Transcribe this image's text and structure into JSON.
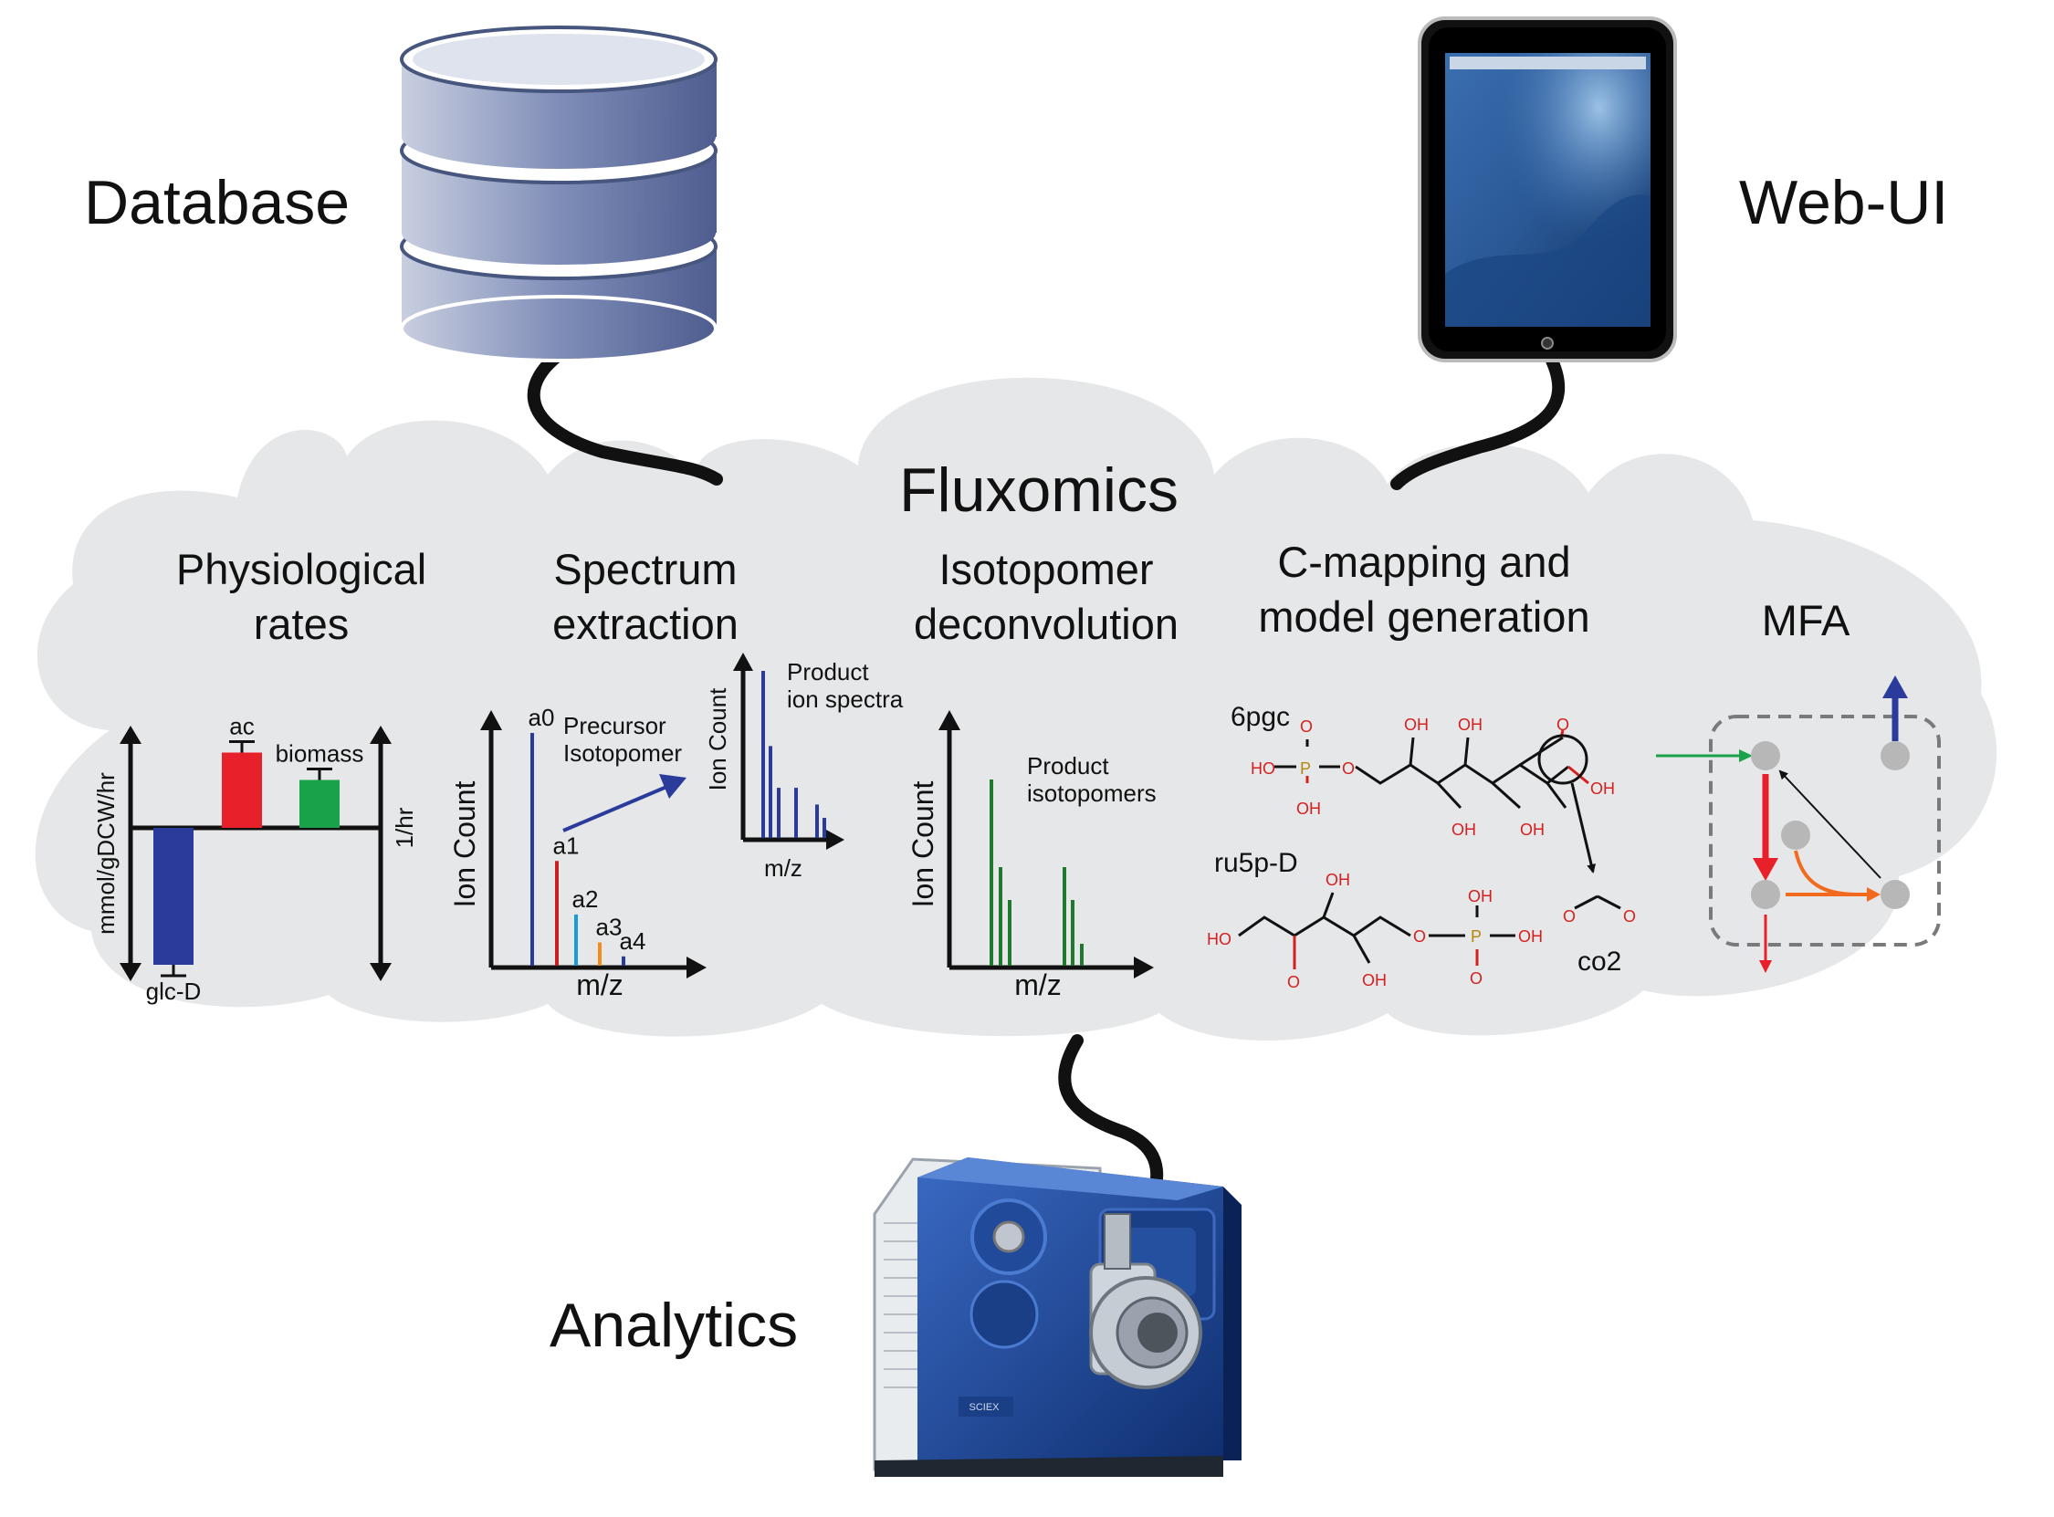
{
  "labels": {
    "database": "Database",
    "webui": "Web-UI",
    "fluxomics": "Fluxomics",
    "analytics": "Analytics"
  },
  "sections": {
    "physio_1": "Physiological",
    "physio_2": "rates",
    "spectrum_1": "Spectrum",
    "spectrum_2": "extraction",
    "isotop_1": "Isotopomer",
    "isotop_2": "deconvolution",
    "cmap_1": "C-mapping and",
    "cmap_2": "model generation",
    "mfa": "MFA"
  },
  "physio": {
    "y_left": "mmol/gDCW/hr",
    "y_right": "1/hr",
    "bars": [
      {
        "label": "glc-D",
        "value": -1.0,
        "color": "#2a3b9c"
      },
      {
        "label": "ac",
        "value": 0.55,
        "color": "#e8202a"
      },
      {
        "label": "biomass",
        "value": 0.35,
        "color": "#1aa24a"
      }
    ]
  },
  "spectrum": {
    "ylabel": "Ion Count",
    "xlabel": "m/z",
    "precursor_1": "Precursor",
    "precursor_2": "Isotopomer",
    "peaks": [
      {
        "label": "a0",
        "value": 1.0,
        "color": "#2a3b9c"
      },
      {
        "label": "a1",
        "value": 0.45,
        "color": "#c82020"
      },
      {
        "label": "a2",
        "value": 0.22,
        "color": "#1a9ad8"
      },
      {
        "label": "a3",
        "value": 0.1,
        "color": "#f28c1e"
      },
      {
        "label": "a4",
        "value": 0.04,
        "color": "#2a3b9c"
      }
    ],
    "product_1": "Product",
    "product_2": "ion spectra",
    "product_ylabel": "Ion Count",
    "product_xlabel": "m/z",
    "product_peaks": [
      1.0,
      0.55,
      0.3,
      0.3,
      0.2,
      0.12
    ]
  },
  "isotopomer": {
    "ylabel": "Ion Count",
    "xlabel": "m/z",
    "product_1": "Product",
    "product_2": "isotopomers",
    "peaks": [
      0.85,
      0.45,
      0.3,
      0.45,
      0.3,
      0.1
    ]
  },
  "cmap": {
    "mol_a": "6pgc",
    "mol_b": "ru5p-D",
    "mol_c": "co2",
    "oh": "OH",
    "ho": "HO",
    "o": "O",
    "p": "P"
  },
  "colors": {
    "cloud": "#e6e7e8",
    "db_top": "#d8dde9",
    "db_side": "#6b7aa8",
    "instrument": "#1e4b9a"
  }
}
